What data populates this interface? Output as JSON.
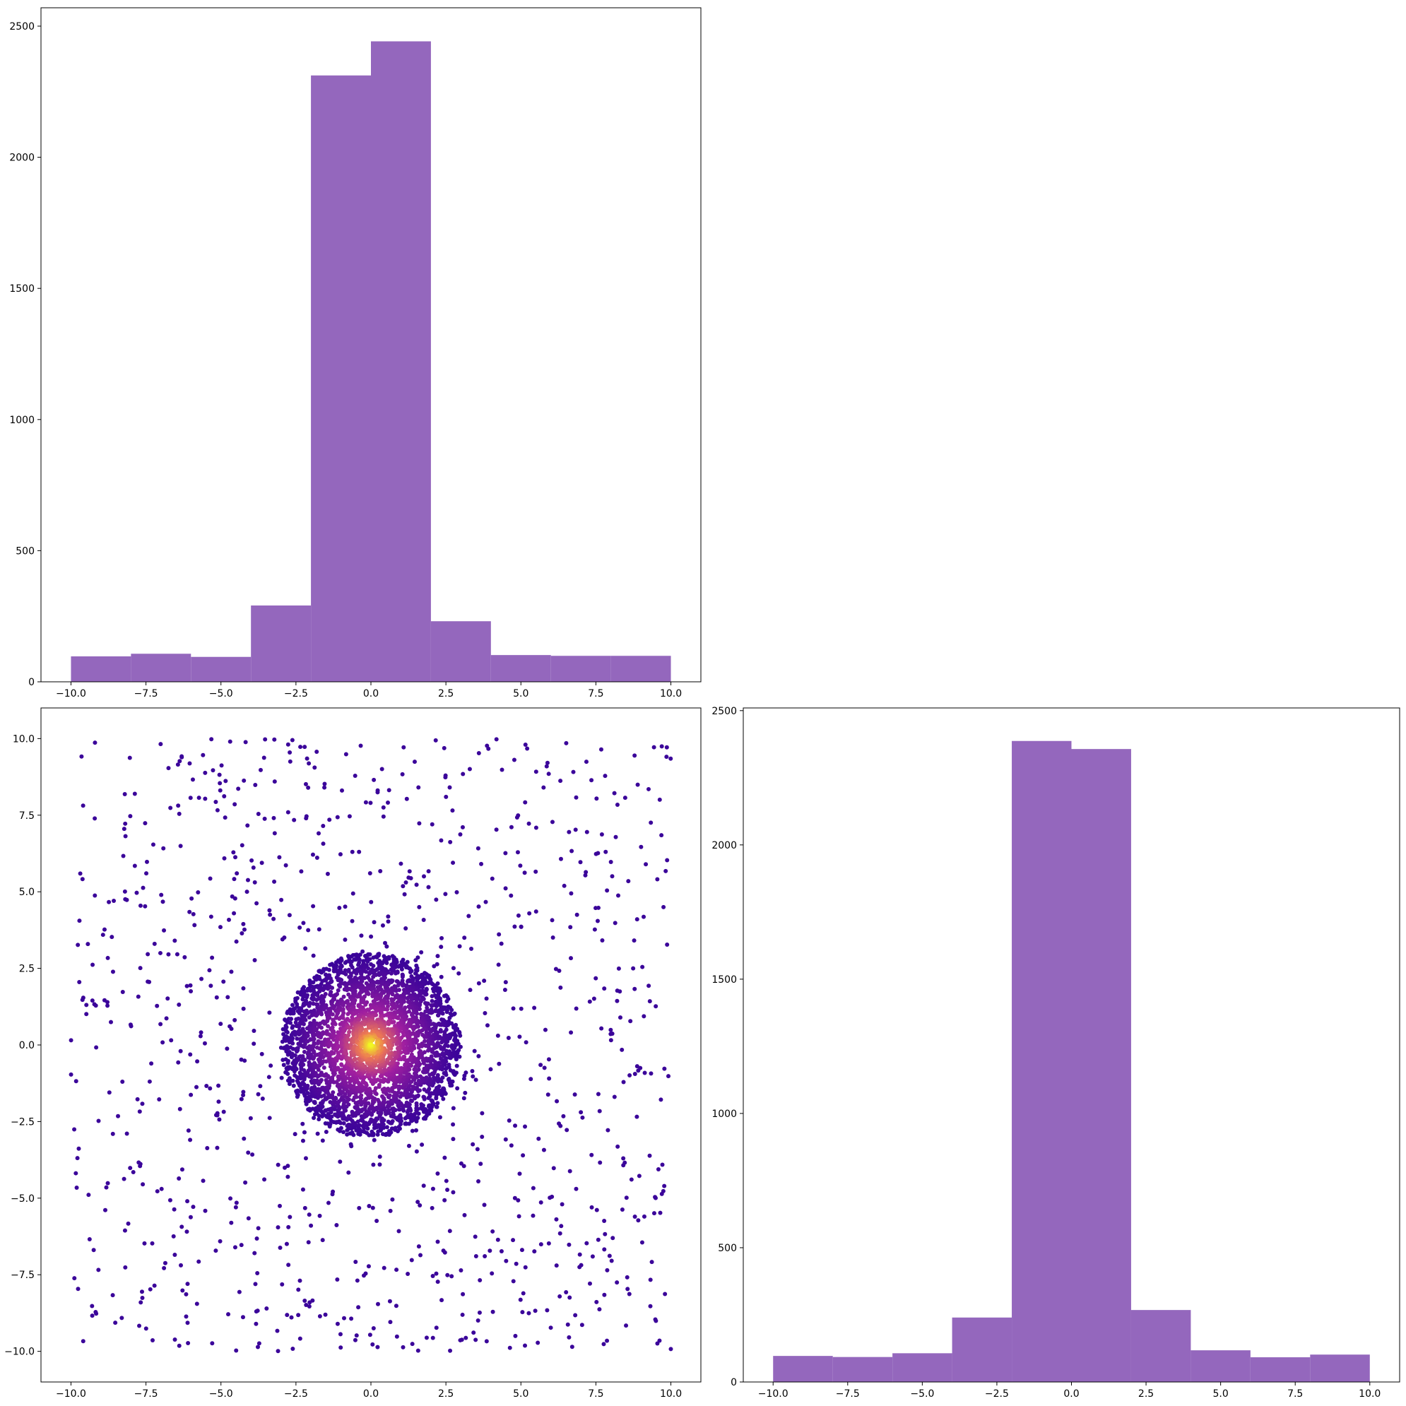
{
  "figure": {
    "colors": {
      "hist_bar": "#9467bd",
      "scatter_low": "#3b049a",
      "scatter_mid": "#a01fa0",
      "scatter_high": "#f0f921",
      "axis": "#000000",
      "background": "#ffffff"
    }
  },
  "chart_data": [
    {
      "panel": "top-left",
      "type": "bar",
      "title": "",
      "xlabel": "",
      "ylabel": "",
      "bin_edges": [
        -10,
        -8,
        -6,
        -4,
        -2,
        0,
        2,
        4,
        6,
        8,
        10
      ],
      "values": [
        97,
        107,
        95,
        291,
        2312,
        2442,
        231,
        102,
        99,
        99
      ],
      "xlim": [
        -11,
        11
      ],
      "ylim": [
        0,
        2570
      ],
      "xticks": [
        -10.0,
        -7.5,
        -5.0,
        -2.5,
        0.0,
        2.5,
        5.0,
        7.5,
        10.0
      ],
      "xtick_labels": [
        "−10.0",
        "−7.5",
        "−5.0",
        "−2.5",
        "0.0",
        "2.5",
        "5.0",
        "7.5",
        "10.0"
      ],
      "yticks": [
        0,
        500,
        1000,
        1500,
        2000,
        2500
      ],
      "ytick_labels": [
        "0",
        "500",
        "1000",
        "1500",
        "2000",
        "2500"
      ],
      "grid": false
    },
    {
      "panel": "bottom-left",
      "type": "scatter",
      "title": "",
      "xlabel": "",
      "ylabel": "",
      "description_of_points": "about 3500 points clustered in a disc of radius ~3 centered at (0,0), colored by density (yellow at center to purple), plus about 1000 points spread uniformly over [-10,10]x[-10,10]",
      "cluster": {
        "center": [
          0,
          0
        ],
        "radius": 3,
        "count": 3500
      },
      "uniform_noise": {
        "xrange": [
          -10,
          10
        ],
        "yrange": [
          -10,
          10
        ],
        "count": 1000
      },
      "xlim": [
        -11,
        11
      ],
      "ylim": [
        -11,
        11
      ],
      "xticks": [
        -10.0,
        -7.5,
        -5.0,
        -2.5,
        0.0,
        2.5,
        5.0,
        7.5,
        10.0
      ],
      "xtick_labels": [
        "−10.0",
        "−7.5",
        "−5.0",
        "−2.5",
        "0.0",
        "2.5",
        "5.0",
        "7.5",
        "10.0"
      ],
      "yticks": [
        -10.0,
        -7.5,
        -5.0,
        -2.5,
        0.0,
        2.5,
        5.0,
        7.5,
        10.0
      ],
      "ytick_labels": [
        "−10.0",
        "−7.5",
        "−5.0",
        "−2.5",
        "0.0",
        "2.5",
        "5.0",
        "7.5",
        "10.0"
      ],
      "grid": false
    },
    {
      "panel": "bottom-right",
      "type": "bar",
      "title": "",
      "xlabel": "",
      "ylabel": "",
      "bin_edges": [
        -10,
        -8,
        -6,
        -4,
        -2,
        0,
        2,
        4,
        6,
        8,
        10
      ],
      "values": [
        97,
        93,
        107,
        240,
        2387,
        2357,
        268,
        118,
        92,
        102
      ],
      "xlim": [
        -11,
        11
      ],
      "ylim": [
        0,
        2510
      ],
      "xticks": [
        -10.0,
        -7.5,
        -5.0,
        -2.5,
        0.0,
        2.5,
        5.0,
        7.5,
        10.0
      ],
      "xtick_labels": [
        "−10.0",
        "−7.5",
        "−5.0",
        "−2.5",
        "0.0",
        "2.5",
        "5.0",
        "7.5",
        "10.0"
      ],
      "yticks": [
        0,
        500,
        1000,
        1500,
        2000,
        2500
      ],
      "ytick_labels": [
        "0",
        "500",
        "1000",
        "1500",
        "2000",
        "2500"
      ],
      "grid": false
    }
  ]
}
